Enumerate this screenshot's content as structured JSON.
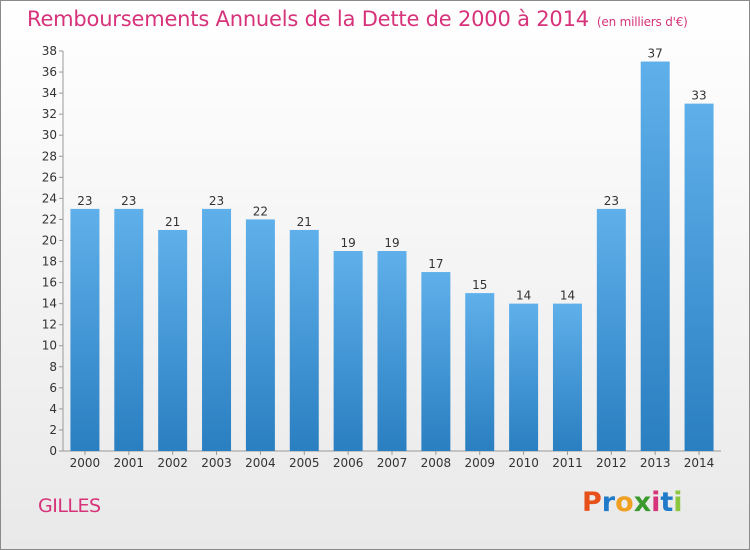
{
  "header": {
    "title": "Remboursements Annuels de la Dette de 2000 à 2014",
    "unit": "(en milliers d'€)"
  },
  "footer": {
    "commune": "GILLES",
    "logo_text": "Proxiti",
    "logo_colors": [
      "#e8501a",
      "#1f7bc9",
      "#f0a020",
      "#3a9a2e",
      "#d6337a",
      "#1f7bc9",
      "#8cc63f"
    ]
  },
  "colors": {
    "title": "#d6337a",
    "bar_light": "#5fb0ea",
    "bar_dark": "#2a7fc1"
  },
  "chart_data": {
    "type": "bar",
    "categories": [
      "2000",
      "2001",
      "2002",
      "2003",
      "2004",
      "2005",
      "2006",
      "2007",
      "2008",
      "2009",
      "2010",
      "2011",
      "2012",
      "2013",
      "2014"
    ],
    "values": [
      23,
      23,
      21,
      23,
      22,
      21,
      19,
      19,
      17,
      15,
      14,
      14,
      23,
      37,
      33
    ],
    "ylim": [
      0,
      38
    ],
    "yticks": [
      0,
      2,
      4,
      6,
      8,
      10,
      12,
      14,
      16,
      18,
      20,
      22,
      24,
      26,
      28,
      30,
      32,
      34,
      36,
      38
    ],
    "grid": false,
    "legend": "none",
    "data_labels": true
  }
}
